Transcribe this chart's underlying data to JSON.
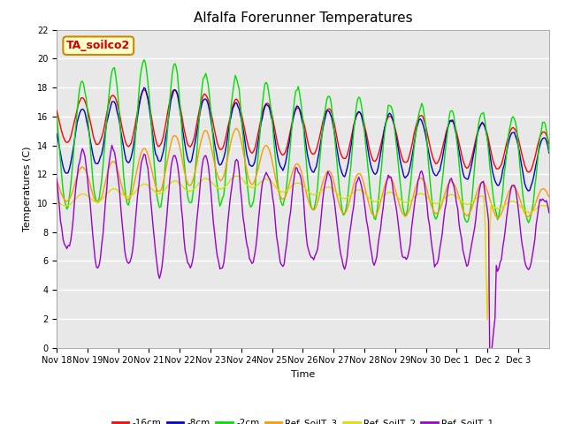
{
  "title": "Alfalfa Forerunner Temperatures",
  "xlabel": "Time",
  "ylabel": "Temperatures (C)",
  "annotation_text": "TA_soilco2",
  "ylim": [
    0,
    22
  ],
  "xlim": [
    0,
    16
  ],
  "xtick_labels": [
    "Nov 18",
    "Nov 19",
    "Nov 20",
    "Nov 21",
    "Nov 22",
    "Nov 23",
    "Nov 24",
    "Nov 25",
    "Nov 26",
    "Nov 27",
    "Nov 28",
    "Nov 29",
    "Nov 30",
    "Dec 1",
    "Dec 2",
    "Dec 3"
  ],
  "legend_labels": [
    "-16cm",
    "-8cm",
    "-2cm",
    "Ref_SoilT_3",
    "Ref_SoilT_2",
    "Ref_SoilT_1"
  ],
  "legend_colors": [
    "#ff0000",
    "#0000cd",
    "#00dd00",
    "#ff9900",
    "#dddd00",
    "#9900cc"
  ],
  "plot_bg_color": "#e8e8e8",
  "grid_color": "#ffffff",
  "title_fontsize": 11,
  "axis_fontsize": 8,
  "tick_fontsize": 7
}
